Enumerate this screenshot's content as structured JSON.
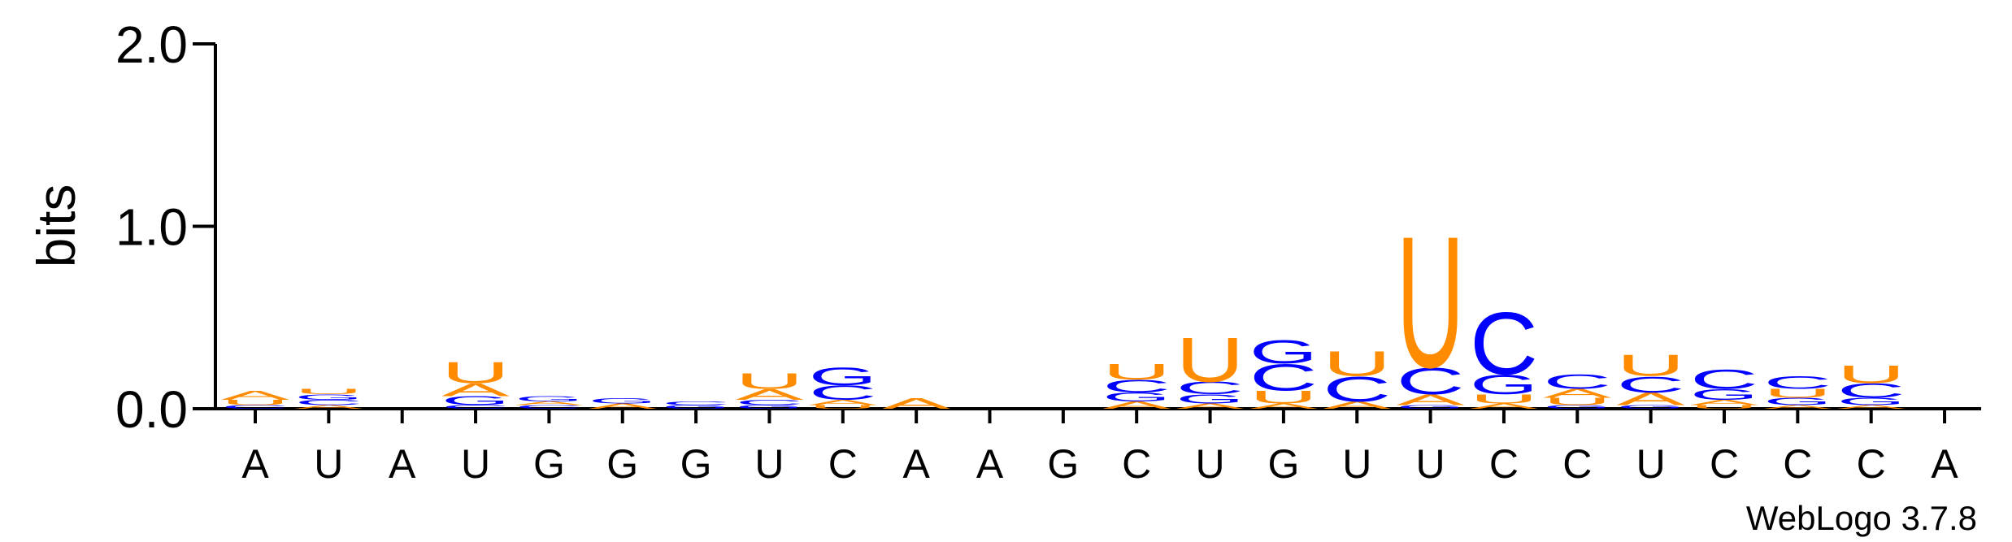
{
  "chart_data": {
    "type": "logo",
    "y_label": "bits",
    "footer": "WebLogo 3.7.8",
    "categories": [
      "A",
      "U",
      "A",
      "U",
      "G",
      "G",
      "G",
      "U",
      "C",
      "A",
      "A",
      "G",
      "C",
      "U",
      "G",
      "U",
      "U",
      "C",
      "C",
      "U",
      "C",
      "C",
      "C",
      "A"
    ],
    "ylim": [
      0,
      2
    ],
    "yticks": [
      {
        "value": 0,
        "label": "0.0"
      },
      {
        "value": 1,
        "label": "1.0"
      },
      {
        "value": 2,
        "label": "2.0"
      }
    ],
    "colors": {
      "A": "#ff8c00",
      "U": "#ff8c00",
      "C": "#0000ff",
      "G": "#0000ff"
    },
    "stacks": [
      [
        {
          "letter": "C",
          "value": 0.02
        },
        {
          "letter": "U",
          "value": 0.03
        },
        {
          "letter": "A",
          "value": 0.05
        }
      ],
      [
        {
          "letter": "A",
          "value": 0.02
        },
        {
          "letter": "C",
          "value": 0.03
        },
        {
          "letter": "G",
          "value": 0.03
        },
        {
          "letter": "U",
          "value": 0.03
        }
      ],
      [],
      [
        {
          "letter": "C",
          "value": 0.02
        },
        {
          "letter": "G",
          "value": 0.05
        },
        {
          "letter": "A",
          "value": 0.07
        },
        {
          "letter": "U",
          "value": 0.12
        }
      ],
      [
        {
          "letter": "C",
          "value": 0.02
        },
        {
          "letter": "A",
          "value": 0.02
        },
        {
          "letter": "G",
          "value": 0.03
        }
      ],
      [
        {
          "letter": "A",
          "value": 0.03
        },
        {
          "letter": "G",
          "value": 0.03
        }
      ],
      [
        {
          "letter": "G",
          "value": 0.02
        },
        {
          "letter": "C",
          "value": 0.02
        }
      ],
      [
        {
          "letter": "G",
          "value": 0.02
        },
        {
          "letter": "C",
          "value": 0.03
        },
        {
          "letter": "A",
          "value": 0.06
        },
        {
          "letter": "U",
          "value": 0.09
        }
      ],
      [
        {
          "letter": "U",
          "value": 0.02
        },
        {
          "letter": "A",
          "value": 0.03
        },
        {
          "letter": "C",
          "value": 0.08
        },
        {
          "letter": "G",
          "value": 0.1
        }
      ],
      [
        {
          "letter": "A",
          "value": 0.06
        }
      ],
      [],
      [],
      [
        {
          "letter": "A",
          "value": 0.04
        },
        {
          "letter": "G",
          "value": 0.05
        },
        {
          "letter": "C",
          "value": 0.07
        },
        {
          "letter": "U",
          "value": 0.09
        }
      ],
      [
        {
          "letter": "A",
          "value": 0.03
        },
        {
          "letter": "G",
          "value": 0.05
        },
        {
          "letter": "C",
          "value": 0.07
        },
        {
          "letter": "U",
          "value": 0.25
        }
      ],
      [
        {
          "letter": "A",
          "value": 0.03
        },
        {
          "letter": "U",
          "value": 0.07
        },
        {
          "letter": "C",
          "value": 0.15
        },
        {
          "letter": "G",
          "value": 0.13
        }
      ],
      [
        {
          "letter": "A",
          "value": 0.04
        },
        {
          "letter": "C",
          "value": 0.14
        },
        {
          "letter": "U",
          "value": 0.14
        }
      ],
      [
        {
          "letter": "G",
          "value": 0.02
        },
        {
          "letter": "A",
          "value": 0.06
        },
        {
          "letter": "C",
          "value": 0.15
        },
        {
          "letter": "U",
          "value": 0.74
        }
      ],
      [
        {
          "letter": "A",
          "value": 0.03
        },
        {
          "letter": "U",
          "value": 0.05
        },
        {
          "letter": "G",
          "value": 0.11
        },
        {
          "letter": "C",
          "value": 0.35
        }
      ],
      [
        {
          "letter": "G",
          "value": 0.02
        },
        {
          "letter": "U",
          "value": 0.04
        },
        {
          "letter": "A",
          "value": 0.05
        },
        {
          "letter": "C",
          "value": 0.08
        }
      ],
      [
        {
          "letter": "G",
          "value": 0.02
        },
        {
          "letter": "A",
          "value": 0.07
        },
        {
          "letter": "C",
          "value": 0.09
        },
        {
          "letter": "U",
          "value": 0.12
        }
      ],
      [
        {
          "letter": "U",
          "value": 0.02
        },
        {
          "letter": "A",
          "value": 0.03
        },
        {
          "letter": "G",
          "value": 0.06
        },
        {
          "letter": "C",
          "value": 0.11
        }
      ],
      [
        {
          "letter": "A",
          "value": 0.02
        },
        {
          "letter": "G",
          "value": 0.04
        },
        {
          "letter": "U",
          "value": 0.05
        },
        {
          "letter": "C",
          "value": 0.07
        }
      ],
      [
        {
          "letter": "A",
          "value": 0.02
        },
        {
          "letter": "G",
          "value": 0.04
        },
        {
          "letter": "C",
          "value": 0.08
        },
        {
          "letter": "U",
          "value": 0.1
        }
      ],
      []
    ]
  }
}
